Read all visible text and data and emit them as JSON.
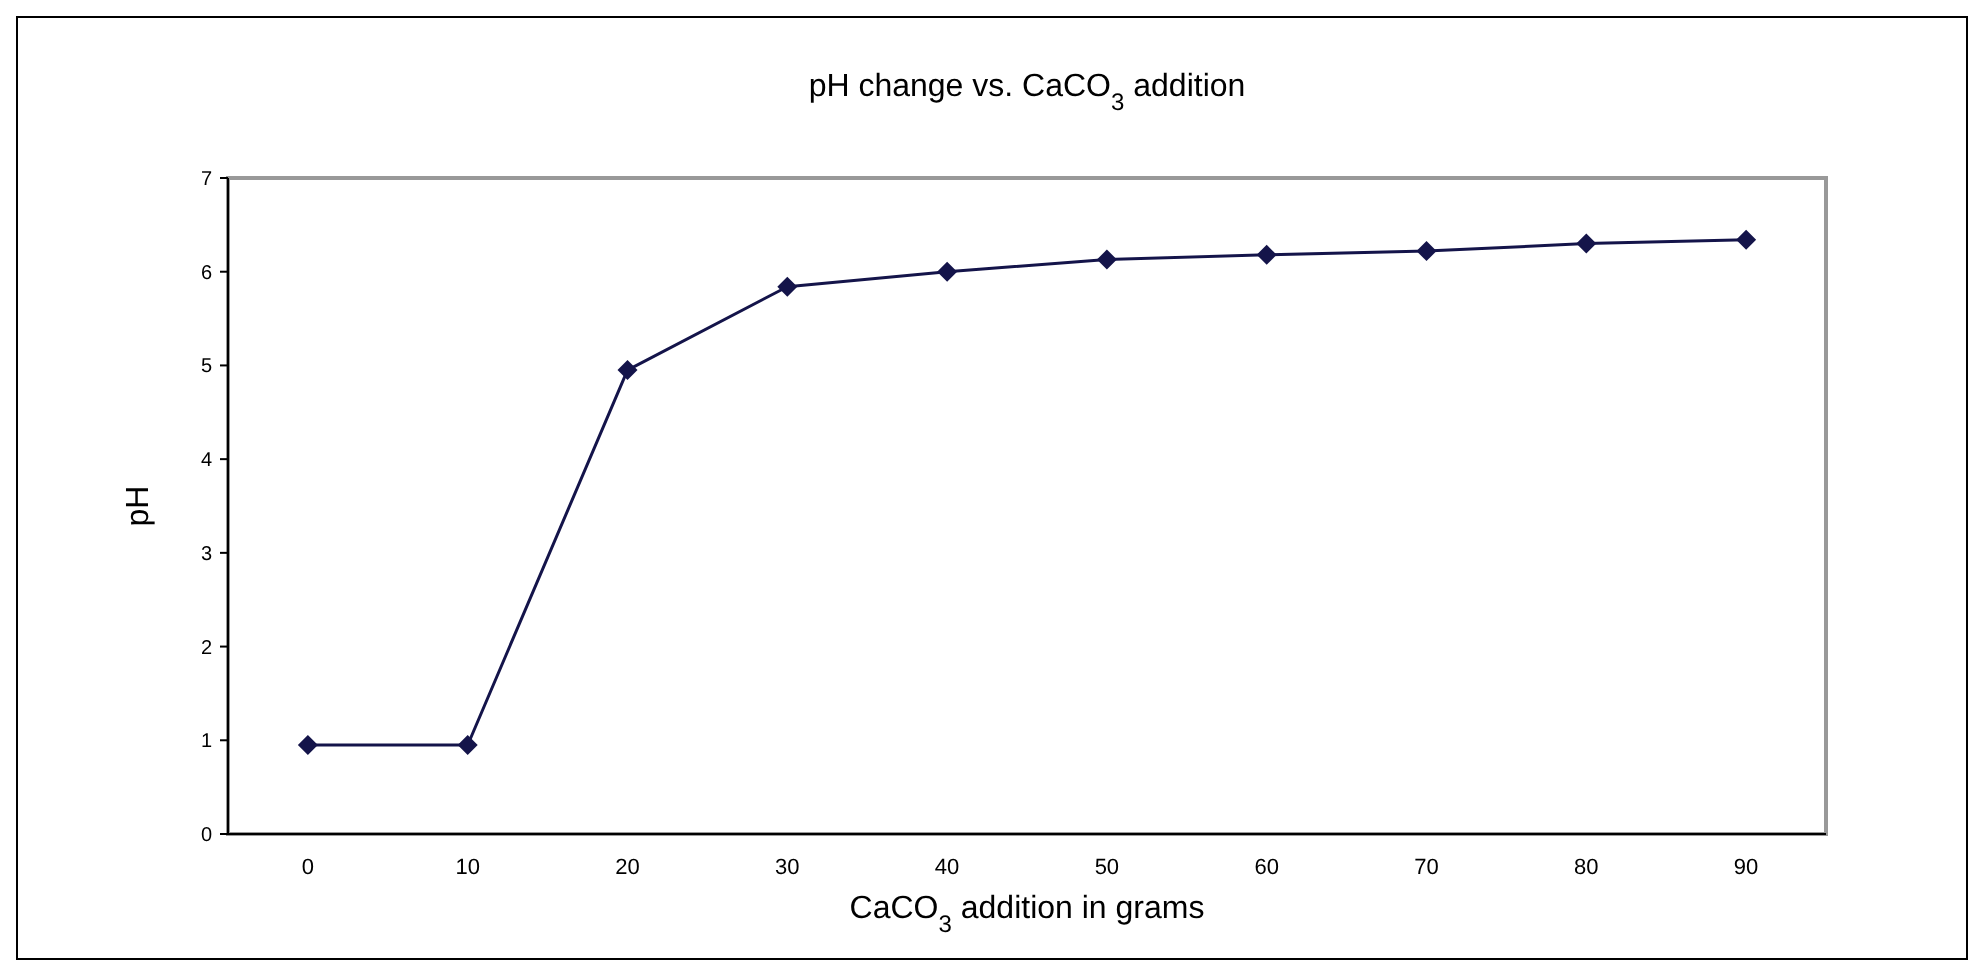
{
  "chart_data": {
    "type": "line",
    "title": "pH change vs. CaCO$_{3}$ addition",
    "xlabel": "CaCO$_{3}$ addition in grams",
    "ylabel": "pH",
    "categories": [
      "0",
      "10",
      "20",
      "30",
      "40",
      "50",
      "60",
      "70",
      "80",
      "90"
    ],
    "series": [
      {
        "color": "#14144a",
        "values": [
          0.95,
          0.95,
          4.95,
          5.84,
          6.0,
          6.13,
          6.18,
          6.22,
          6.3,
          6.34
        ]
      }
    ],
    "ylim": [
      0,
      7
    ],
    "yticks": [
      0,
      1,
      2,
      3,
      4,
      5,
      6,
      7
    ],
    "grid": false,
    "marker": "diamond",
    "line_style": "solid"
  }
}
